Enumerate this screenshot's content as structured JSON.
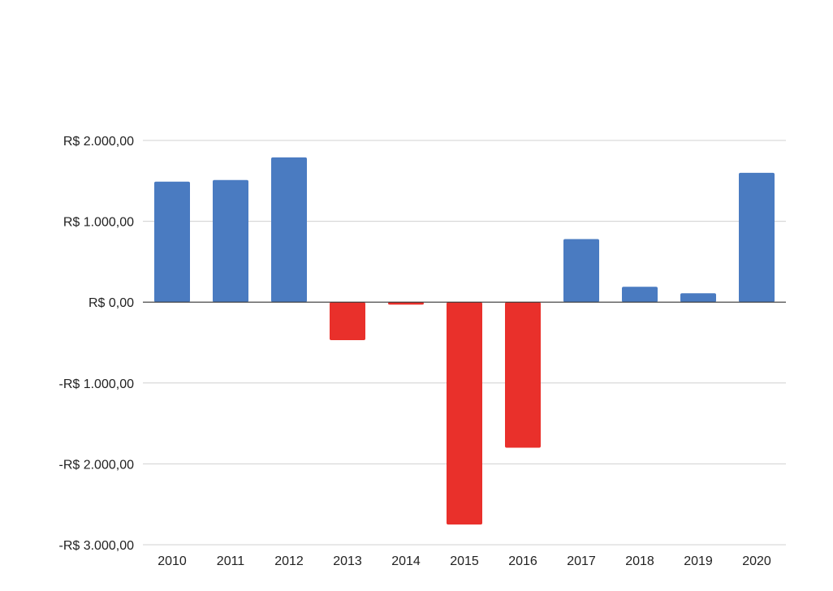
{
  "chart_data": {
    "type": "bar",
    "title": "",
    "xlabel": "",
    "ylabel": "",
    "categories": [
      "2010",
      "2011",
      "2012",
      "2013",
      "2014",
      "2015",
      "2016",
      "2017",
      "2018",
      "2019",
      "2020"
    ],
    "values": [
      1490,
      1510,
      1790,
      -470,
      -30,
      -2750,
      -1800,
      780,
      190,
      110,
      1600
    ],
    "ylim": [
      -3000,
      2000
    ],
    "yticks": [
      2000,
      1000,
      0,
      -1000,
      -2000,
      -3000
    ],
    "ytick_labels": [
      "R$ 2.000,00",
      "R$ 1.000,00",
      "R$ 0,00",
      "-R$ 1.000,00",
      "-R$ 2.000,00",
      "-R$ 3.000,00"
    ],
    "grid": true,
    "legend": "none",
    "colors": {
      "positive": "#4a7bc1",
      "negative": "#e9302b"
    }
  }
}
